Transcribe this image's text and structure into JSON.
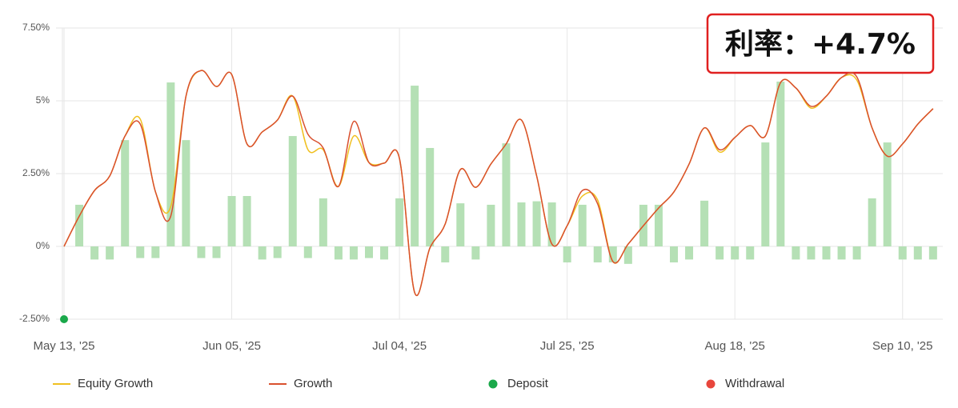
{
  "chart_data": {
    "type": "line",
    "annotation": "利率：+4.7%",
    "categories": [
      "May 13, '25",
      null,
      null,
      null,
      null,
      null,
      null,
      null,
      null,
      null,
      null,
      "Jun 05, '25",
      null,
      null,
      null,
      null,
      null,
      null,
      null,
      null,
      null,
      null,
      "Jul 04, '25",
      null,
      null,
      null,
      null,
      null,
      null,
      null,
      null,
      null,
      null,
      "Jul 25, '25",
      null,
      null,
      null,
      null,
      null,
      null,
      null,
      null,
      null,
      null,
      "Aug 18, '25",
      null,
      null,
      null,
      null,
      null,
      null,
      null,
      null,
      null,
      null,
      "Sep 10, '25",
      null,
      null
    ],
    "ylim": [
      -2.5,
      7.5
    ],
    "yticks": [
      {
        "value": -2.5,
        "label": "-2.50%"
      },
      {
        "value": 0,
        "label": "0%"
      },
      {
        "value": 2.5,
        "label": "2.50%"
      },
      {
        "value": 5,
        "label": "5%"
      },
      {
        "value": 7.5,
        "label": "7.50%"
      }
    ],
    "grid": true,
    "legend": "bottom",
    "bars": {
      "color": "#b5e0b5",
      "values": [
        null,
        1.43,
        -0.45,
        -0.45,
        3.65,
        -0.4,
        -0.4,
        5.63,
        3.65,
        -0.4,
        -0.4,
        1.73,
        1.73,
        -0.45,
        -0.4,
        3.79,
        -0.4,
        1.65,
        -0.45,
        -0.45,
        -0.4,
        -0.45,
        1.65,
        5.52,
        3.38,
        -0.55,
        1.48,
        -0.45,
        1.43,
        3.54,
        1.51,
        1.55,
        1.51,
        -0.55,
        1.43,
        -0.55,
        -0.55,
        -0.6,
        1.43,
        1.43,
        -0.55,
        -0.45,
        1.57,
        -0.45,
        -0.45,
        -0.45,
        3.57,
        5.66,
        -0.45,
        -0.45,
        -0.45,
        -0.45,
        -0.45,
        1.65,
        3.57,
        -0.45,
        -0.45,
        -0.45
      ]
    },
    "series": [
      {
        "name": "Equity Growth",
        "type": "line",
        "color": "#f0c020",
        "values": [
          0,
          1.04,
          1.92,
          2.42,
          3.79,
          4.37,
          1.87,
          1.37,
          5.16,
          6.04,
          5.49,
          5.9,
          3.52,
          3.93,
          4.34,
          5.16,
          3.32,
          3.32,
          2.06,
          3.79,
          2.88,
          2.86,
          3.02,
          -1.59,
          -0.05,
          0.77,
          2.64,
          2.03,
          2.83,
          3.52,
          4.34,
          2.42,
          0.08,
          0.71,
          1.73,
          1.59,
          -0.52,
          0.08,
          0.71,
          1.32,
          1.87,
          2.83,
          4.07,
          3.24,
          3.74,
          4.15,
          3.79,
          5.63,
          5.44,
          4.75,
          5.16,
          5.8,
          5.71,
          4.07,
          3.1,
          3.52,
          4.2,
          4.73
        ]
      },
      {
        "name": "Growth",
        "type": "line",
        "color": "#d9502e",
        "values": [
          0,
          1.04,
          1.92,
          2.42,
          3.79,
          4.2,
          1.87,
          1.04,
          5.16,
          6.04,
          5.49,
          5.9,
          3.52,
          3.93,
          4.34,
          5.16,
          3.85,
          3.38,
          2.06,
          4.29,
          2.88,
          2.86,
          3.02,
          -1.59,
          -0.05,
          0.77,
          2.64,
          2.03,
          2.83,
          3.52,
          4.34,
          2.42,
          0.08,
          0.71,
          1.92,
          1.46,
          -0.52,
          0.08,
          0.71,
          1.32,
          1.87,
          2.83,
          4.07,
          3.32,
          3.74,
          4.15,
          3.79,
          5.63,
          5.44,
          4.81,
          5.16,
          5.8,
          5.82,
          4.07,
          3.1,
          3.52,
          4.2,
          4.73
        ]
      },
      {
        "name": "Deposit",
        "type": "scatter",
        "color": "#1aa84a",
        "values": [
          -2.5,
          null,
          null,
          null,
          null,
          null,
          null,
          null,
          null,
          null,
          null,
          null,
          null,
          null,
          null,
          null,
          null,
          null,
          null,
          null,
          null,
          null,
          null,
          null,
          null,
          null,
          null,
          null,
          null,
          null,
          null,
          null,
          null,
          null,
          null,
          null,
          null,
          null,
          null,
          null,
          null,
          null,
          null,
          null,
          null,
          null,
          null,
          null,
          null,
          null,
          null,
          null,
          null,
          null,
          null,
          null,
          null,
          null
        ]
      },
      {
        "name": "Withdrawal",
        "type": "scatter",
        "color": "#e8463c",
        "values": [
          null,
          null,
          null,
          null,
          null,
          null,
          null,
          null,
          null,
          null,
          null,
          null,
          null,
          null,
          null,
          null,
          null,
          null,
          null,
          null,
          null,
          null,
          null,
          null,
          null,
          null,
          null,
          null,
          null,
          null,
          null,
          null,
          null,
          null,
          null,
          null,
          null,
          null,
          null,
          null,
          null,
          null,
          null,
          null,
          null,
          null,
          null,
          null,
          null,
          null,
          null,
          null,
          null,
          null,
          null,
          null,
          null,
          null
        ]
      }
    ]
  }
}
